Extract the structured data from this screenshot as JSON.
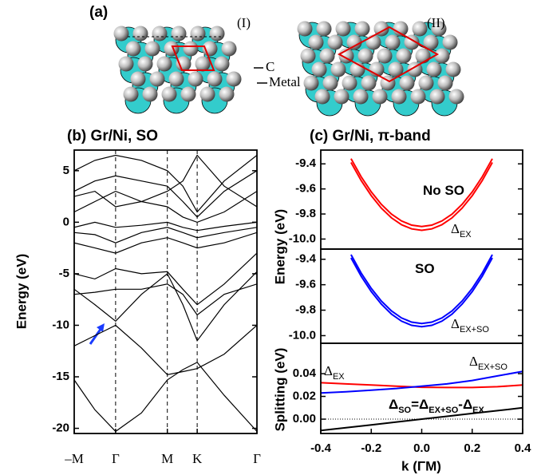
{
  "panel_a": {
    "label": "(a)",
    "structures": [
      "(I)",
      "(II)"
    ],
    "atom_labels": [
      "C",
      "Metal"
    ]
  },
  "chart_data": [
    {
      "type": "line",
      "title": "(b) Gr/Ni, SO",
      "y_label": "Energy (eV)",
      "color": "#000000",
      "xlim": [
        -0.8,
        2.732
      ],
      "ylim": [
        -20.5,
        7
      ],
      "x_grid": true,
      "xticks": [
        {
          "value": -0.8,
          "label": "–M"
        },
        {
          "value": 0,
          "label": "Γ"
        },
        {
          "value": 1,
          "label": "M"
        },
        {
          "value": 1.577,
          "label": "K"
        },
        {
          "value": 2.732,
          "label": "Γ"
        }
      ],
      "yticks": [
        -20,
        -15,
        -10,
        -5,
        0,
        5
      ],
      "x": [
        -0.8,
        -0.4,
        0,
        0.5,
        1,
        1.3,
        1.577,
        2.1,
        2.732
      ],
      "series": [
        {
          "values": [
            -15.3,
            -18.2,
            -20.3,
            -18.5,
            -15.3,
            -14.3,
            -13.6,
            -16.8,
            -20.3
          ]
        },
        {
          "values": [
            -12,
            -11,
            -10,
            -12.2,
            -14.8,
            -14.5,
            -14.2,
            -12.8,
            -10
          ]
        },
        {
          "values": [
            -6.5,
            -8,
            -9.6,
            -7,
            -5,
            -8,
            -11.5,
            -8,
            -4.8
          ]
        },
        {
          "values": [
            -7,
            -6.8,
            -6.5,
            -6.5,
            -6,
            -7,
            -9,
            -7,
            -6
          ]
        },
        {
          "values": [
            -5,
            -5.5,
            -4.5,
            -5,
            -4.8,
            -6.5,
            -8,
            -6,
            -3
          ]
        },
        {
          "values": [
            -2,
            -2.5,
            -3,
            -2,
            -1.5,
            -2,
            -2.5,
            -2,
            -1
          ]
        },
        {
          "values": [
            -1,
            -1.2,
            -2,
            -1,
            -0.5,
            -1,
            -1.5,
            -1,
            -0.5
          ]
        },
        {
          "values": [
            -0.5,
            0,
            -0.5,
            -0.3,
            0,
            -0.5,
            -0.8,
            -0.4,
            0
          ]
        },
        {
          "values": [
            1,
            2,
            3,
            2,
            1.5,
            0.5,
            0,
            1,
            3
          ]
        },
        {
          "values": [
            2.5,
            3,
            1.5,
            2,
            3,
            4,
            6.5,
            3.5,
            1.5
          ]
        },
        {
          "values": [
            3,
            4,
            4.5,
            4,
            3.5,
            2,
            0.5,
            3,
            5
          ]
        },
        {
          "values": [
            5,
            6,
            6.5,
            6,
            5,
            3.5,
            1,
            4,
            6.5
          ]
        }
      ]
    },
    {
      "type": "line",
      "title": "(c) Gr/Ni, π-band",
      "y_label": "Energy (eV)",
      "xlim": [
        -0.4,
        0.4
      ],
      "ylim": [
        -10.08,
        -9.29
      ],
      "yticks": [
        {
          "value": -10,
          "label": "-10.0"
        },
        -9.8,
        -9.6,
        -9.4
      ],
      "x": [
        -0.28,
        -0.24,
        -0.2,
        -0.16,
        -0.12,
        -0.08,
        -0.04,
        0,
        0.04,
        0.08,
        0.12,
        0.16,
        0.2,
        0.24,
        0.28
      ],
      "series": [
        {
          "color": "#ff0000",
          "values": [
            -9.389,
            -9.533,
            -9.654,
            -9.753,
            -9.831,
            -9.886,
            -9.919,
            -9.93,
            -9.919,
            -9.886,
            -9.831,
            -9.753,
            -9.654,
            -9.533,
            -9.389
          ]
        },
        {
          "color": "#ff0000",
          "values": [
            -9.359,
            -9.503,
            -9.624,
            -9.723,
            -9.801,
            -9.856,
            -9.889,
            -9.9,
            -9.889,
            -9.856,
            -9.801,
            -9.723,
            -9.624,
            -9.503,
            -9.359
          ]
        }
      ],
      "annotations": [
        [
          {
            "text": "No SO"
          }
        ],
        [
          {
            "text": "Δ",
            "sub": "EX"
          }
        ]
      ]
    },
    {
      "type": "line",
      "xlim": [
        -0.4,
        0.4
      ],
      "ylim": [
        -10.06,
        -9.32
      ],
      "yticks": [
        {
          "value": -10,
          "label": "-10.0"
        },
        -9.8,
        -9.6,
        -9.4
      ],
      "x": [
        -0.28,
        -0.24,
        -0.2,
        -0.16,
        -0.12,
        -0.08,
        -0.04,
        0,
        0.04,
        0.08,
        0.12,
        0.16,
        0.2,
        0.24,
        0.28
      ],
      "series": [
        {
          "color": "#0000ff",
          "values": [
            -9.389,
            -9.533,
            -9.654,
            -9.753,
            -9.831,
            -9.886,
            -9.919,
            -9.93,
            -9.919,
            -9.886,
            -9.831,
            -9.753,
            -9.654,
            -9.533,
            -9.389
          ]
        },
        {
          "color": "#0000ff",
          "values": [
            -9.364,
            -9.508,
            -9.629,
            -9.728,
            -9.806,
            -9.861,
            -9.894,
            -9.905,
            -9.894,
            -9.861,
            -9.806,
            -9.728,
            -9.629,
            -9.508,
            -9.364
          ]
        }
      ],
      "annotations": [
        [
          {
            "text": "SO"
          }
        ],
        [
          {
            "text": "Δ",
            "sub": "EX+SO"
          }
        ]
      ]
    },
    {
      "type": "line",
      "y_label": "Splitting (eV)",
      "x_label": "k (ΓM)",
      "xlim": [
        -0.4,
        0.4
      ],
      "ylim": [
        -0.0126,
        0.0667
      ],
      "zero_line": true,
      "xticks": [
        -0.4,
        -0.2,
        {
          "value": 0,
          "label": "0.0"
        },
        0.2,
        0.4
      ],
      "yticks": [
        {
          "value": 0,
          "label": "0.00"
        },
        0.02,
        0.04
      ],
      "x": [
        -0.4,
        -0.3,
        -0.2,
        -0.1,
        0,
        0.1,
        0.2,
        0.3,
        0.4
      ],
      "series": [
        {
          "color": "#ff0000",
          "values": [
            0.032,
            0.031,
            0.03,
            0.029,
            0.028,
            0.0278,
            0.0278,
            0.0285,
            0.03
          ]
        },
        {
          "color": "#0000ff",
          "values": [
            0.023,
            0.024,
            0.0255,
            0.027,
            0.029,
            0.031,
            0.034,
            0.038,
            0.042
          ]
        },
        {
          "color": "#000000",
          "values": [
            -0.01,
            -0.0075,
            -0.005,
            -0.0025,
            0,
            0.0025,
            0.005,
            0.0075,
            0.01
          ]
        }
      ],
      "annotations": [
        [
          {
            "text": "Δ",
            "sub": "EX"
          }
        ],
        [
          {
            "text": "Δ",
            "sub": "EX+SO"
          }
        ],
        [
          {
            "text": "Δ",
            "sub": "SO"
          },
          {
            "text": "=Δ",
            "sub": "EX+SO"
          },
          {
            "text": "-Δ",
            "sub": "EX"
          }
        ]
      ]
    }
  ]
}
